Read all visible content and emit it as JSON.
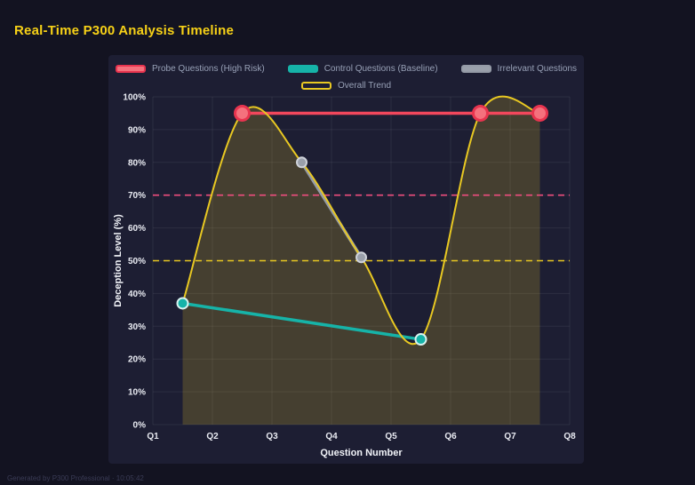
{
  "page": {
    "title": "Real-Time P300 Analysis Timeline",
    "footer": "Generated by P300 Professional · 10:05:42"
  },
  "colors": {
    "background": "#131321",
    "panel": "#1d1e33",
    "title": "#f7d117",
    "grid": "rgba(255,255,255,0.07)",
    "probe": "#f25f6d",
    "control": "#16b3a8",
    "irrelevant": "#959ba7",
    "trend": "#e8c822",
    "reference_high": "#ee4d7e",
    "reference_mid": "#e8c822"
  },
  "chart_data": {
    "type": "line",
    "title": "Real-Time P300 Analysis Timeline",
    "xlabel": "Question Number",
    "ylabel": "Deception Level (%)",
    "xlim": [
      1,
      8
    ],
    "ylim": [
      0,
      100
    ],
    "grid": true,
    "legend_position": "top",
    "x_ticks": {
      "values": [
        1,
        2,
        3,
        4,
        5,
        6,
        7,
        8
      ],
      "labels": [
        "Q1",
        "Q2",
        "Q3",
        "Q4",
        "Q5",
        "Q6",
        "Q7",
        "Q8"
      ]
    },
    "y_ticks": {
      "values": [
        0,
        10,
        20,
        30,
        40,
        50,
        60,
        70,
        80,
        90,
        100
      ],
      "labels": [
        "0%",
        "10%",
        "20%",
        "30%",
        "40%",
        "50%",
        "60%",
        "70%",
        "80%",
        "90%",
        "100%"
      ]
    },
    "series": [
      {
        "name": "Probe Questions (High Risk)",
        "color": "#e8344f",
        "x": [
          2.5,
          6.5,
          7.5
        ],
        "values": [
          95,
          95,
          95
        ],
        "line_width": 3.5,
        "line_color": "#f2475c",
        "marker_radius": 8,
        "marker_fill": "#f4717d",
        "marker_stroke": "#e8344f",
        "marker_stroke_width": 3,
        "smooth": false,
        "swatch": "solid"
      },
      {
        "name": "Control Questions (Baseline)",
        "color": "#16b3a8",
        "x": [
          1.5,
          5.5
        ],
        "values": [
          37,
          26
        ],
        "line_width": 3.5,
        "line_color": "#16b3a8",
        "marker_radius": 6,
        "marker_fill": "#16b3a8",
        "marker_stroke": "#d9f3f0",
        "marker_stroke_width": 2,
        "smooth": false,
        "swatch": "solid"
      },
      {
        "name": "Irrelevant Questions",
        "color": "#959ba7",
        "x": [
          3.5,
          4.5
        ],
        "values": [
          80,
          51
        ],
        "line_width": 3.5,
        "line_color": "#959ba7",
        "marker_radius": 5.5,
        "marker_fill": "#9aa0ab",
        "marker_stroke": "#cfd3da",
        "marker_stroke_width": 2,
        "smooth": false,
        "swatch": "solid"
      },
      {
        "name": "Overall Trend",
        "color": "#e8c822",
        "x": [
          1.5,
          2.5,
          3.5,
          4.5,
          5.5,
          6.5,
          7.5
        ],
        "values": [
          37,
          95,
          80,
          51,
          26,
          95,
          95
        ],
        "line_width": 2,
        "line_color": "#e8c822",
        "marker_radius": 0,
        "smooth": true,
        "fill": true,
        "fill_color": "rgba(214,184,40,0.22)",
        "swatch": "outline"
      }
    ],
    "reference_lines": [
      {
        "y": 70,
        "color": "#ee4d7e",
        "dash": "7 5"
      },
      {
        "y": 50,
        "color": "#e8c822",
        "dash": "7 5"
      }
    ]
  }
}
